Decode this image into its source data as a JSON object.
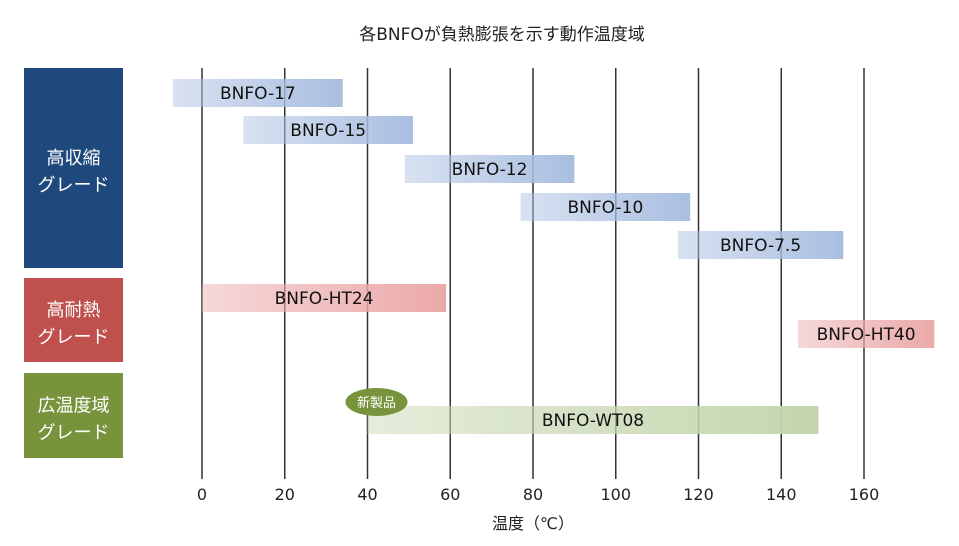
{
  "chart_data": {
    "type": "range-bar",
    "title": "各BNFOが負熱膨張を示す動作温度域",
    "xlabel": "温度（℃）",
    "xlim": [
      -10,
      180
    ],
    "xticks": [
      0,
      20,
      40,
      60,
      80,
      100,
      120,
      140,
      160
    ],
    "grid": "vertical",
    "groups": [
      {
        "label_lines": [
          "高収縮",
          "グレード"
        ],
        "color": "#1F497D",
        "bar_color": "#A9BEE0"
      },
      {
        "label_lines": [
          "高耐熱",
          "グレード"
        ],
        "color": "#C0504D",
        "bar_color": "#EBA9A9"
      },
      {
        "label_lines": [
          "広温度域",
          "グレード"
        ],
        "color": "#77933C",
        "bar_color": "#C4D6AE"
      }
    ],
    "bars": [
      {
        "name": "BNFO-17",
        "group": 0,
        "range": [
          -7,
          34
        ]
      },
      {
        "name": "BNFO-15",
        "group": 0,
        "range": [
          10,
          51
        ]
      },
      {
        "name": "BNFO-12",
        "group": 0,
        "range": [
          49,
          90
        ]
      },
      {
        "name": "BNFO-10",
        "group": 0,
        "range": [
          77,
          118
        ]
      },
      {
        "name": "BNFO-7.5",
        "group": 0,
        "range": [
          115,
          155
        ]
      },
      {
        "name": "BNFO-HT24",
        "group": 1,
        "range": [
          0,
          59
        ]
      },
      {
        "name": "BNFO-HT40",
        "group": 1,
        "range": [
          144,
          177
        ]
      },
      {
        "name": "BNFO-WT08",
        "group": 2,
        "range": [
          40,
          149
        ],
        "badge": "新製品"
      }
    ]
  }
}
